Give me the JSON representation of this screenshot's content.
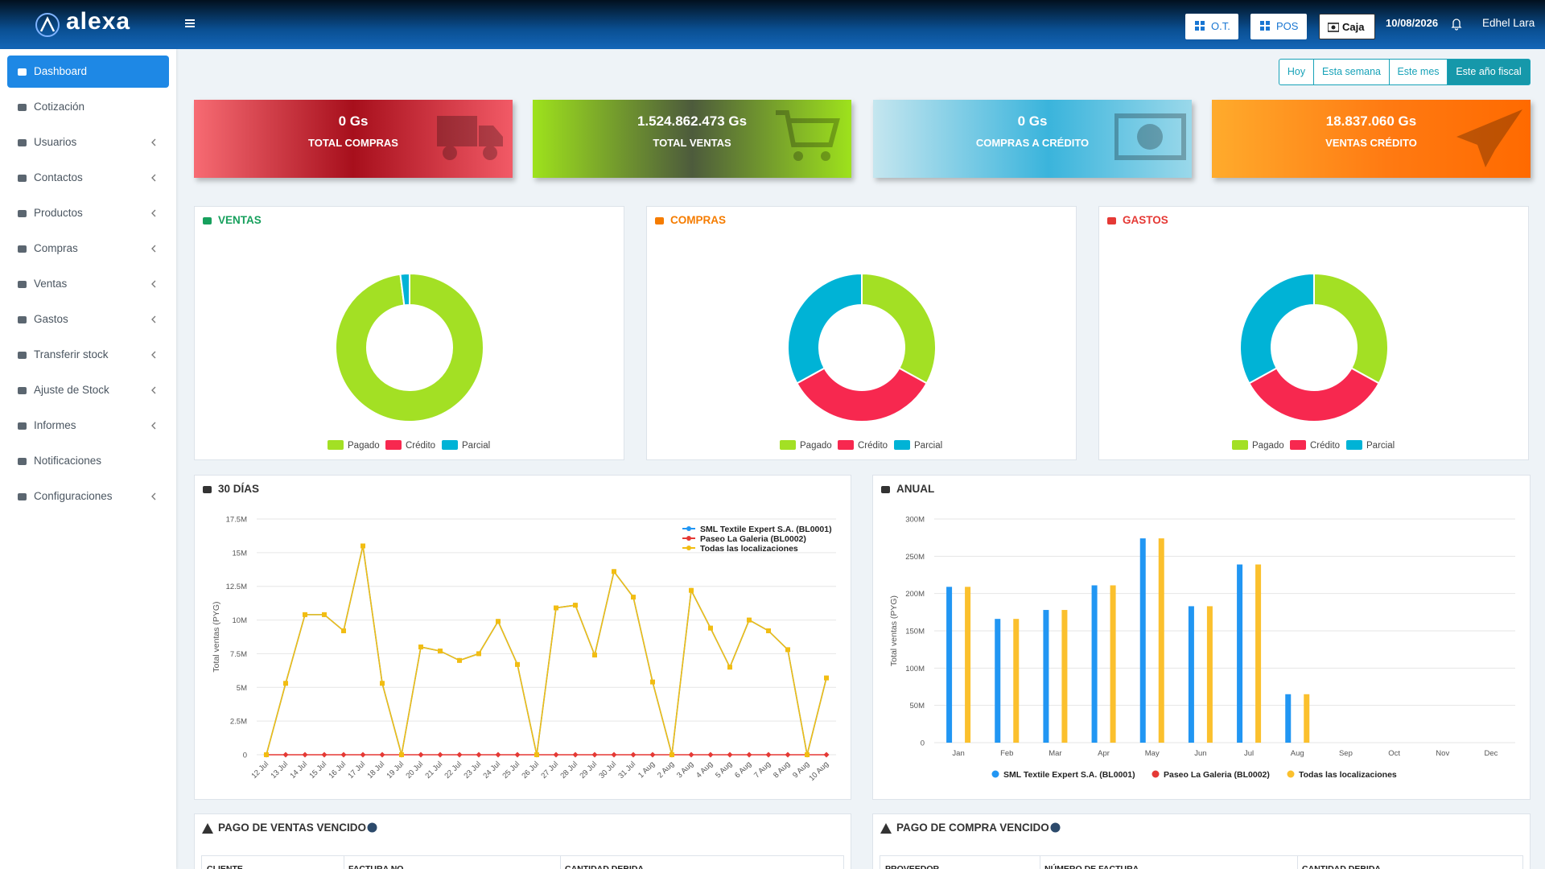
{
  "header": {
    "logo": "alexa",
    "menu_buttons": [
      "O.T.",
      "POS",
      "Caja"
    ],
    "date": "10/08/2026",
    "user": "Edhel Lara"
  },
  "sidebar": {
    "active": "Dashboard",
    "items": [
      {
        "label": "Dashboard",
        "submenu": false
      },
      {
        "label": "Cotización",
        "submenu": false
      },
      {
        "label": "Usuarios",
        "submenu": true
      },
      {
        "label": "Contactos",
        "submenu": true
      },
      {
        "label": "Productos",
        "submenu": true
      },
      {
        "label": "Compras",
        "submenu": true
      },
      {
        "label": "Ventas",
        "submenu": true
      },
      {
        "label": "Gastos",
        "submenu": true
      },
      {
        "label": "Transferir stock",
        "submenu": true
      },
      {
        "label": "Ajuste de Stock",
        "submenu": true
      },
      {
        "label": "Informes",
        "submenu": true
      },
      {
        "label": "Notificaciones",
        "submenu": false
      },
      {
        "label": "Configuraciones",
        "submenu": true
      }
    ]
  },
  "filters": {
    "active": "Este año fiscal",
    "options": [
      "Hoy",
      "Esta semana",
      "Este mes",
      "Este año fiscal"
    ]
  },
  "cards": [
    {
      "value": "0 Gs",
      "label": "TOTAL COMPRAS"
    },
    {
      "value": "1.524.862.473 Gs",
      "label": "TOTAL VENTAS"
    },
    {
      "value": "0 Gs",
      "label": "COMPRAS A CRÉDITO"
    },
    {
      "value": "18.837.060 Gs",
      "label": "VENTAS CRÉDITO"
    }
  ],
  "donuts": [
    {
      "type": "pie",
      "title": "VENTAS",
      "title_color": "#17a05d",
      "categories": [
        "Pagado",
        "Crédito",
        "Parcial"
      ],
      "values": [
        98,
        0,
        2
      ],
      "colors": [
        "#a3e024",
        "#f7284f",
        "#00b3d6"
      ]
    },
    {
      "type": "pie",
      "title": "COMPRAS",
      "title_color": "#f57c00",
      "categories": [
        "Pagado",
        "Crédito",
        "Parcial"
      ],
      "values": [
        33,
        34,
        33
      ],
      "colors": [
        "#a3e024",
        "#f7284f",
        "#00b3d6"
      ]
    },
    {
      "type": "pie",
      "title": "GASTOS",
      "title_color": "#e53935",
      "categories": [
        "Pagado",
        "Crédito",
        "Parcial"
      ],
      "values": [
        33,
        34,
        33
      ],
      "colors": [
        "#a3e024",
        "#f7284f",
        "#00b3d6"
      ]
    }
  ],
  "line_chart": {
    "type": "line",
    "title": "30 DÍAS",
    "y_label": "Total ventas (PYG)",
    "grid": true,
    "categories": [
      "12 Jul",
      "13 Jul",
      "14 Jul",
      "15 Jul",
      "16 Jul",
      "17 Jul",
      "18 Jul",
      "19 Jul",
      "20 Jul",
      "21 Jul",
      "22 Jul",
      "23 Jul",
      "24 Jul",
      "25 Jul",
      "26 Jul",
      "27 Jul",
      "28 Jul",
      "29 Jul",
      "30 Jul",
      "31 Jul",
      "1 Aug",
      "2 Aug",
      "3 Aug",
      "4 Aug",
      "5 Aug",
      "6 Aug",
      "7 Aug",
      "8 Aug",
      "9 Aug",
      "10 Aug"
    ],
    "series": [
      {
        "name": "SML Textile Expert S.A. (BL0001)",
        "color": "#2196f3",
        "values": [
          0,
          5300000,
          10400000,
          10400000,
          9200000,
          15500000,
          5300000,
          0,
          8000000,
          7700000,
          7000000,
          7500000,
          9900000,
          6700000,
          0,
          10900000,
          11100000,
          7400000,
          13600000,
          11700000,
          5400000,
          0,
          12200000,
          9400000,
          6500000,
          10000000,
          9200000,
          7800000,
          0,
          5700000
        ]
      },
      {
        "name": "Paseo La Galeria (BL0002)",
        "color": "#e53935",
        "values": [
          0,
          0,
          0,
          0,
          0,
          0,
          0,
          0,
          0,
          0,
          0,
          0,
          0,
          0,
          0,
          0,
          0,
          0,
          0,
          0,
          0,
          0,
          0,
          0,
          0,
          0,
          0,
          0,
          0,
          0
        ]
      },
      {
        "name": "Todas las localizaciones",
        "color": "#f2bd12",
        "values": [
          0,
          5300000,
          10400000,
          10400000,
          9200000,
          15500000,
          5300000,
          0,
          8000000,
          7700000,
          7000000,
          7500000,
          9900000,
          6700000,
          0,
          10900000,
          11100000,
          7400000,
          13600000,
          11700000,
          5400000,
          0,
          12200000,
          9400000,
          6500000,
          10000000,
          9200000,
          7800000,
          0,
          5700000
        ]
      }
    ],
    "ylim": [
      0,
      17500000
    ],
    "yticks": [
      0,
      {
        "value": 2500000,
        "label": "2.5M"
      },
      {
        "value": 5000000,
        "label": "5M"
      },
      {
        "value": 7500000,
        "label": "7.5M"
      },
      {
        "value": 10000000,
        "label": "10M"
      },
      {
        "value": 12500000,
        "label": "12.5M"
      },
      {
        "value": 15000000,
        "label": "15M"
      },
      {
        "value": 17500000,
        "label": "17.5M"
      }
    ]
  },
  "bar_chart": {
    "type": "bar",
    "title": "ANUAL",
    "y_label": "Total ventas (PYG)",
    "grid": true,
    "categories": [
      "Jan",
      "Feb",
      "Mar",
      "Apr",
      "May",
      "Jun",
      "Jul",
      "Aug",
      "Sep",
      "Oct",
      "Nov",
      "Dec"
    ],
    "series": [
      {
        "name": "SML Textile Expert S.A. (BL0001)",
        "color": "#2196f3",
        "values": [
          209000000,
          166000000,
          178000000,
          211000000,
          274000000,
          183000000,
          239000000,
          65000000,
          0,
          0,
          0,
          0
        ]
      },
      {
        "name": "Paseo La Galeria (BL0002)",
        "color": "#e53935",
        "values": [
          0,
          0,
          0,
          0,
          0,
          0,
          0,
          0,
          0,
          0,
          0,
          0
        ]
      },
      {
        "name": "Todas las localizaciones",
        "color": "#fbc02d",
        "values": [
          209000000,
          166000000,
          178000000,
          211000000,
          274000000,
          183000000,
          239000000,
          65000000,
          0,
          0,
          0,
          0
        ]
      }
    ],
    "ylim": [
      0,
      300000000
    ],
    "yticks": [
      0,
      {
        "value": 50000000,
        "label": "50M"
      },
      {
        "value": 100000000,
        "label": "100M"
      },
      {
        "value": 150000000,
        "label": "150M"
      },
      {
        "value": 200000000,
        "label": "200M"
      },
      {
        "value": 250000000,
        "label": "250M"
      },
      {
        "value": 300000000,
        "label": "300M"
      }
    ]
  },
  "tables": [
    {
      "title": "PAGO DE VENTAS VENCIDO",
      "columns": [
        "CLIENTE",
        "FACTURA NO.",
        "CANTIDAD DEBIDA"
      ]
    },
    {
      "title": "PAGO DE COMPRA VENCIDO",
      "columns": [
        "PROVEEDOR",
        "NÚMERO DE FACTURA",
        "CANTIDAD DEBIDA"
      ]
    }
  ]
}
